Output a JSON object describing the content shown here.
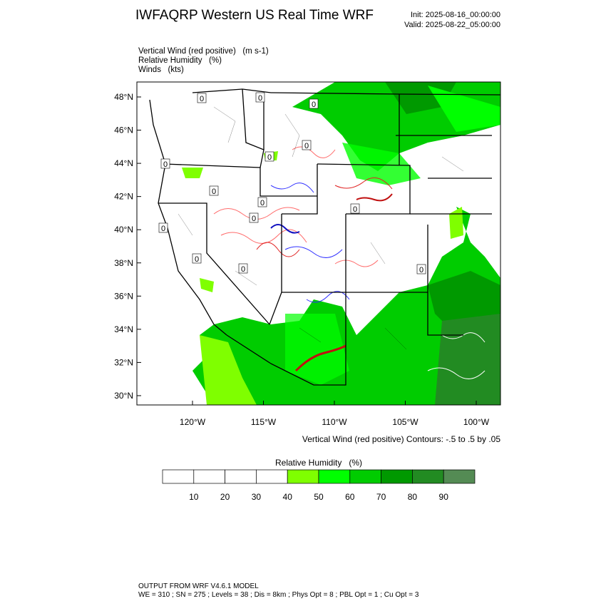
{
  "header": {
    "title": "IWFAQRP Western US Real Time WRF",
    "init": "Init: 2025-08-16_00:00:00",
    "valid": "Valid: 2025-08-22_05:00:00"
  },
  "fields": [
    "Vertical Wind (red positive)   (m s-1)",
    "Relative Humidity   (%)",
    "Winds   (kts)"
  ],
  "map": {
    "lat_labels": [
      "48°N",
      "46°N",
      "44°N",
      "42°N",
      "40°N",
      "38°N",
      "36°N",
      "34°N",
      "32°N",
      "30°N"
    ],
    "lon_labels": [
      "120°W",
      "115°W",
      "110°W",
      "105°W",
      "100°W"
    ],
    "contour_labels": [
      "0",
      "0",
      "0",
      "0",
      "0",
      "0",
      "0",
      "0",
      "0",
      "0",
      "0",
      "0",
      "0",
      "0"
    ],
    "contour_note": "Vertical Wind (red positive) Contours: -.5 to .5 by .05"
  },
  "colorbar": {
    "title": "Relative Humidity   (%)",
    "labels": [
      "10",
      "20",
      "30",
      "40",
      "50",
      "60",
      "70",
      "80",
      "90"
    ],
    "colors": [
      "#ffffff",
      "#ffffff",
      "#ffffff",
      "#ffffff",
      "#7fff00",
      "#00ff00",
      "#00cc00",
      "#009900",
      "#228b22",
      "#548b54"
    ]
  },
  "footer": {
    "line1": "OUTPUT FROM WRF V4.6.1 MODEL",
    "line2": "WE = 310 ; SN = 275 ; Levels = 38 ; Dis = 8km ; Phys Opt = 8 ; PBL Opt = 1 ; Cu Opt = 3"
  }
}
